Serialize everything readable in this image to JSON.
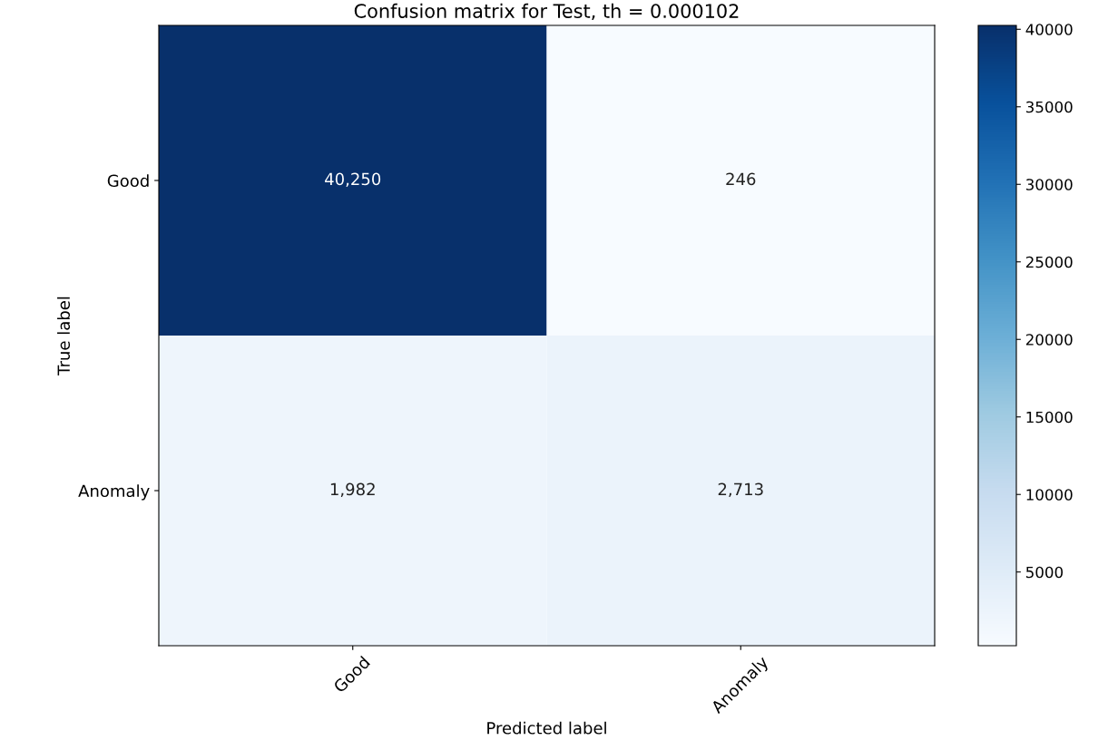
{
  "chart_data": {
    "type": "heatmap",
    "title": "Confusion matrix for Test, th = 0.000102",
    "xlabel": "Predicted label",
    "ylabel": "True label",
    "categories": [
      "Good",
      "Anomaly"
    ],
    "y_categories": [
      "Good",
      "Anomaly"
    ],
    "cells": [
      [
        40250,
        246
      ],
      [
        1982,
        2713
      ]
    ],
    "cell_labels": [
      [
        "40,250",
        "246"
      ],
      [
        "1,982",
        "2,713"
      ]
    ],
    "clim": [
      246,
      40250
    ],
    "cticks": [
      5000,
      10000,
      15000,
      20000,
      25000,
      30000,
      35000,
      40000
    ]
  }
}
